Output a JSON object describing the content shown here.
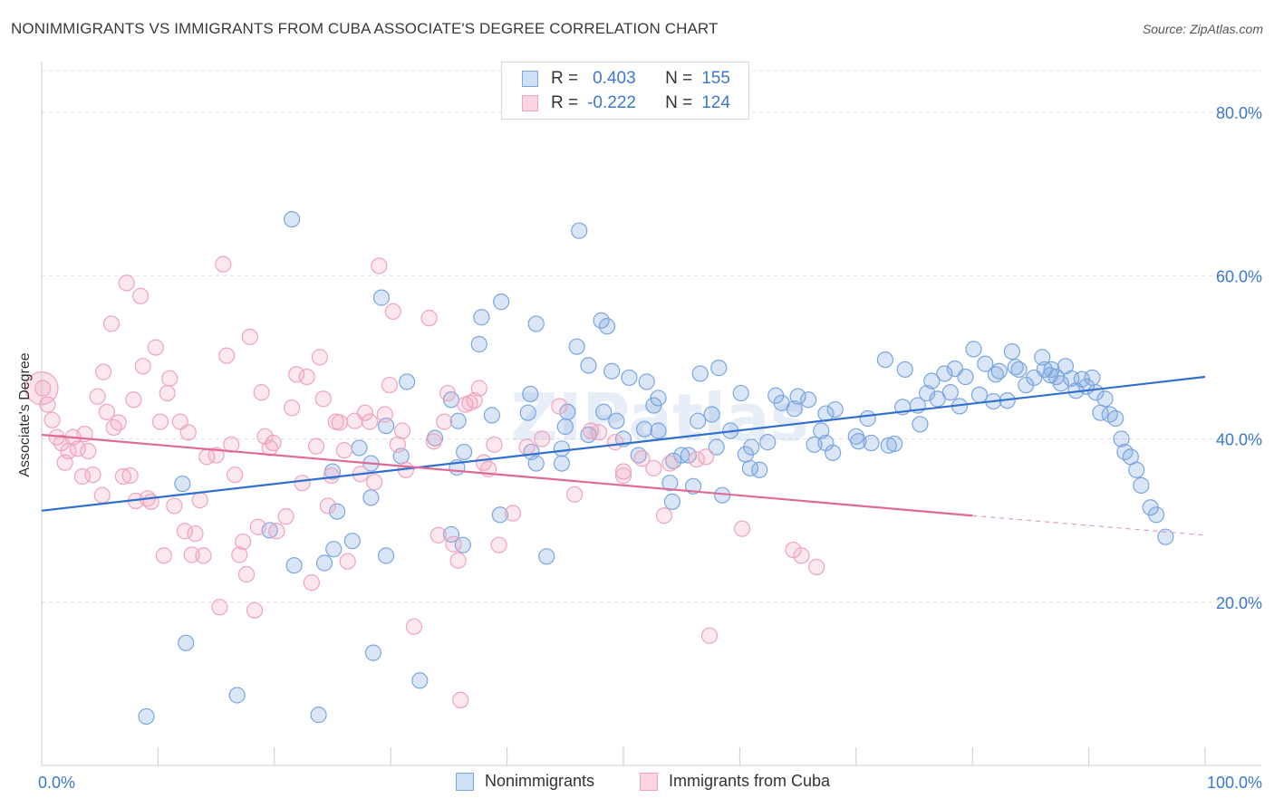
{
  "header": {
    "title": "NONIMMIGRANTS VS IMMIGRANTS FROM CUBA ASSOCIATE'S DEGREE CORRELATION CHART",
    "source": "Source: ZipAtlas.com"
  },
  "watermark": "ZIPatlas",
  "stats_legend": [
    {
      "r_label": "R =",
      "r_value": "0.403",
      "n_label": "N =",
      "n_value": "155"
    },
    {
      "r_label": "R =",
      "r_value": "-0.222",
      "n_label": "N =",
      "n_value": "124"
    }
  ],
  "chart_data": {
    "type": "scatter",
    "title": "NONIMMIGRANTS VS IMMIGRANTS FROM CUBA ASSOCIATE'S DEGREE CORRELATION CHART",
    "xlabel": "",
    "ylabel": "Associate's Degree",
    "xlim": [
      0,
      100
    ],
    "ylim": [
      0,
      83
    ],
    "x_ticks": [
      {
        "value": 0,
        "label": "0.0%"
      },
      {
        "value": 100,
        "label": "100.0%"
      }
    ],
    "y_ticks": [
      {
        "value": 20,
        "label": "20.0%"
      },
      {
        "value": 40,
        "label": "40.0%"
      },
      {
        "value": 60,
        "label": "60.0%"
      },
      {
        "value": 80,
        "label": "80.0%"
      }
    ],
    "grid": true,
    "legend_position": "bottom-center",
    "colors": {
      "nonimmigrants": "#7aa6e0",
      "cuba": "#f0a3bd",
      "blue_line": "#2f6fd0",
      "pink_line": "#e06a96",
      "tick_text": "#3b78d0"
    },
    "series": [
      {
        "name": "Nonimmigrants",
        "color": "#7aa6e0",
        "trend": {
          "x": [
            0,
            100
          ],
          "y": [
            31.2,
            47.6
          ]
        },
        "points": [
          [
            21.5,
            66.9
          ],
          [
            46.2,
            65.5
          ],
          [
            29.2,
            57.3
          ],
          [
            39.5,
            56.8
          ],
          [
            37.8,
            54.9
          ],
          [
            42.5,
            54.1
          ],
          [
            48.1,
            54.5
          ],
          [
            48.6,
            53.8
          ],
          [
            37.6,
            51.6
          ],
          [
            46.0,
            51.3
          ],
          [
            47.0,
            49.0
          ],
          [
            50.5,
            47.5
          ],
          [
            52.0,
            47.0
          ],
          [
            49.0,
            48.3
          ],
          [
            53.0,
            45.0
          ],
          [
            42.0,
            45.5
          ],
          [
            31.4,
            47.0
          ],
          [
            35.2,
            44.8
          ],
          [
            35.8,
            42.2
          ],
          [
            33.8,
            40.1
          ],
          [
            29.6,
            41.6
          ],
          [
            27.3,
            38.9
          ],
          [
            36.3,
            38.4
          ],
          [
            28.3,
            37.0
          ],
          [
            30.9,
            37.9
          ],
          [
            25.0,
            36.0
          ],
          [
            28.3,
            32.8
          ],
          [
            25.4,
            31.1
          ],
          [
            12.1,
            34.5
          ],
          [
            35.7,
            36.5
          ],
          [
            38.7,
            42.9
          ],
          [
            41.8,
            43.2
          ],
          [
            42.1,
            38.4
          ],
          [
            42.5,
            37.0
          ],
          [
            44.7,
            38.8
          ],
          [
            44.7,
            37.0
          ],
          [
            45.2,
            43.3
          ],
          [
            48.3,
            43.3
          ],
          [
            49.4,
            42.2
          ],
          [
            51.8,
            41.2
          ],
          [
            51.3,
            38.0
          ],
          [
            52.6,
            44.1
          ],
          [
            54.3,
            37.3
          ],
          [
            55.6,
            38.0
          ],
          [
            54.0,
            34.6
          ],
          [
            54.2,
            32.3
          ],
          [
            56.0,
            34.2
          ],
          [
            56.4,
            42.2
          ],
          [
            57.6,
            43.0
          ],
          [
            56.6,
            48.0
          ],
          [
            58.5,
            33.1
          ],
          [
            58.2,
            48.7
          ],
          [
            60.1,
            45.6
          ],
          [
            59.2,
            41.0
          ],
          [
            60.5,
            38.1
          ],
          [
            60.9,
            36.4
          ],
          [
            61.7,
            36.2
          ],
          [
            62.4,
            39.6
          ],
          [
            63.1,
            45.3
          ],
          [
            63.6,
            44.4
          ],
          [
            64.7,
            43.7
          ],
          [
            65.0,
            45.2
          ],
          [
            65.9,
            44.8
          ],
          [
            66.4,
            39.3
          ],
          [
            67.4,
            43.1
          ],
          [
            67.0,
            41.0
          ],
          [
            68.2,
            43.6
          ],
          [
            68.0,
            38.3
          ],
          [
            70.0,
            40.3
          ],
          [
            70.2,
            39.7
          ],
          [
            71.3,
            39.5
          ],
          [
            71.0,
            42.5
          ],
          [
            72.5,
            49.7
          ],
          [
            72.8,
            39.2
          ],
          [
            73.3,
            39.4
          ],
          [
            74.0,
            43.9
          ],
          [
            74.2,
            48.5
          ],
          [
            75.3,
            44.1
          ],
          [
            75.5,
            41.8
          ],
          [
            76.1,
            45.6
          ],
          [
            76.5,
            47.1
          ],
          [
            77.0,
            44.9
          ],
          [
            77.6,
            48.0
          ],
          [
            78.5,
            48.6
          ],
          [
            78.1,
            45.7
          ],
          [
            78.9,
            44.0
          ],
          [
            79.4,
            47.6
          ],
          [
            80.1,
            51.0
          ],
          [
            80.6,
            45.4
          ],
          [
            81.8,
            44.6
          ],
          [
            81.1,
            49.2
          ],
          [
            82.0,
            47.9
          ],
          [
            82.3,
            48.3
          ],
          [
            83.4,
            50.7
          ],
          [
            83.0,
            44.7
          ],
          [
            84.0,
            48.5
          ],
          [
            84.6,
            46.6
          ],
          [
            85.3,
            47.5
          ],
          [
            86.0,
            50.0
          ],
          [
            86.2,
            48.5
          ],
          [
            86.7,
            47.8
          ],
          [
            87.2,
            47.6
          ],
          [
            87.6,
            46.8
          ],
          [
            88.0,
            48.9
          ],
          [
            88.5,
            47.4
          ],
          [
            88.9,
            45.9
          ],
          [
            89.4,
            47.3
          ],
          [
            89.8,
            46.4
          ],
          [
            90.3,
            47.5
          ],
          [
            90.6,
            45.7
          ],
          [
            91.0,
            43.2
          ],
          [
            91.4,
            44.9
          ],
          [
            91.8,
            43.0
          ],
          [
            92.3,
            42.5
          ],
          [
            92.8,
            40.0
          ],
          [
            93.1,
            38.4
          ],
          [
            93.6,
            37.8
          ],
          [
            94.1,
            36.2
          ],
          [
            94.5,
            34.3
          ],
          [
            95.3,
            31.6
          ],
          [
            95.8,
            30.7
          ],
          [
            96.6,
            28.0
          ],
          [
            26.7,
            27.5
          ],
          [
            25.1,
            26.5
          ],
          [
            24.3,
            24.8
          ],
          [
            21.7,
            24.5
          ],
          [
            29.6,
            25.7
          ],
          [
            19.6,
            28.8
          ],
          [
            35.2,
            28.3
          ],
          [
            36.2,
            27.0
          ],
          [
            39.4,
            30.7
          ],
          [
            43.4,
            25.6
          ],
          [
            12.4,
            15.0
          ],
          [
            28.5,
            13.8
          ],
          [
            32.5,
            10.4
          ],
          [
            16.8,
            8.6
          ],
          [
            9.0,
            6.0
          ],
          [
            23.8,
            6.2
          ],
          [
            83.7,
            48.8
          ],
          [
            86.8,
            48.5
          ],
          [
            67.4,
            39.5
          ],
          [
            61.0,
            39.0
          ],
          [
            58.0,
            39.0
          ],
          [
            55.0,
            38.0
          ],
          [
            53.0,
            41.0
          ],
          [
            50.0,
            40.0
          ],
          [
            47.0,
            40.5
          ],
          [
            45.0,
            41.5
          ]
        ]
      },
      {
        "name": "Immigrants from Cuba",
        "color": "#f0a3bd",
        "trend": {
          "x": [
            0,
            80
          ],
          "y": [
            40.5,
            30.6
          ]
        },
        "trend_dashed": {
          "x": [
            80,
            100
          ],
          "y": [
            30.6,
            28.2
          ]
        },
        "points": [
          [
            0.1,
            46.2
          ],
          [
            0.5,
            44.2
          ],
          [
            0.9,
            42.3
          ],
          [
            1.3,
            40.2
          ],
          [
            1.7,
            39.5
          ],
          [
            2.0,
            37.1
          ],
          [
            2.3,
            38.5
          ],
          [
            2.7,
            40.2
          ],
          [
            3.1,
            38.8
          ],
          [
            3.5,
            35.4
          ],
          [
            3.7,
            40.6
          ],
          [
            4.0,
            38.5
          ],
          [
            4.4,
            35.6
          ],
          [
            4.8,
            45.2
          ],
          [
            5.2,
            33.1
          ],
          [
            5.3,
            48.2
          ],
          [
            5.6,
            43.3
          ],
          [
            6.0,
            54.1
          ],
          [
            6.2,
            41.4
          ],
          [
            6.6,
            42.0
          ],
          [
            7.0,
            35.4
          ],
          [
            7.3,
            59.1
          ],
          [
            7.6,
            35.5
          ],
          [
            7.9,
            44.8
          ],
          [
            8.1,
            32.4
          ],
          [
            8.5,
            57.5
          ],
          [
            8.7,
            48.9
          ],
          [
            9.1,
            32.7
          ],
          [
            9.4,
            32.3
          ],
          [
            9.8,
            51.2
          ],
          [
            10.2,
            42.1
          ],
          [
            10.5,
            25.7
          ],
          [
            10.8,
            45.6
          ],
          [
            11.0,
            47.4
          ],
          [
            11.4,
            31.8
          ],
          [
            11.9,
            42.1
          ],
          [
            12.3,
            28.7
          ],
          [
            12.6,
            40.8
          ],
          [
            12.9,
            25.8
          ],
          [
            13.2,
            28.4
          ],
          [
            13.6,
            32.5
          ],
          [
            13.9,
            25.7
          ],
          [
            14.2,
            37.8
          ],
          [
            15.0,
            38.0
          ],
          [
            15.3,
            19.4
          ],
          [
            15.6,
            61.4
          ],
          [
            15.9,
            50.2
          ],
          [
            16.3,
            39.3
          ],
          [
            16.6,
            35.6
          ],
          [
            17.0,
            25.8
          ],
          [
            17.3,
            27.4
          ],
          [
            17.6,
            23.4
          ],
          [
            17.9,
            52.5
          ],
          [
            18.3,
            19.0
          ],
          [
            18.6,
            29.2
          ],
          [
            18.9,
            45.7
          ],
          [
            19.2,
            40.3
          ],
          [
            19.6,
            38.9
          ],
          [
            19.9,
            39.5
          ],
          [
            20.2,
            28.7
          ],
          [
            21.0,
            30.5
          ],
          [
            21.5,
            43.8
          ],
          [
            21.9,
            47.9
          ],
          [
            22.4,
            34.6
          ],
          [
            22.8,
            47.6
          ],
          [
            23.2,
            22.4
          ],
          [
            23.6,
            39.1
          ],
          [
            23.9,
            50.0
          ],
          [
            24.2,
            44.9
          ],
          [
            24.6,
            31.8
          ],
          [
            24.9,
            35.5
          ],
          [
            25.3,
            42.1
          ],
          [
            25.6,
            42.0
          ],
          [
            26.0,
            38.6
          ],
          [
            26.3,
            25.0
          ],
          [
            26.9,
            42.2
          ],
          [
            27.4,
            35.7
          ],
          [
            27.8,
            43.2
          ],
          [
            28.2,
            42.1
          ],
          [
            28.6,
            34.7
          ],
          [
            29.0,
            61.2
          ],
          [
            29.5,
            43.0
          ],
          [
            29.9,
            46.6
          ],
          [
            30.2,
            55.6
          ],
          [
            30.6,
            39.3
          ],
          [
            31.0,
            41.0
          ],
          [
            31.3,
            36.2
          ],
          [
            32.0,
            17.0
          ],
          [
            33.3,
            54.8
          ],
          [
            33.7,
            39.7
          ],
          [
            34.1,
            28.2
          ],
          [
            34.6,
            42.1
          ],
          [
            34.9,
            45.6
          ],
          [
            35.4,
            27.1
          ],
          [
            35.8,
            25.1
          ],
          [
            36.0,
            8.0
          ],
          [
            36.4,
            44.2
          ],
          [
            36.8,
            44.4
          ],
          [
            37.2,
            44.7
          ],
          [
            37.6,
            46.2
          ],
          [
            38.0,
            37.1
          ],
          [
            38.4,
            36.3
          ],
          [
            38.9,
            39.3
          ],
          [
            39.3,
            27.0
          ],
          [
            40.5,
            30.9
          ],
          [
            41.7,
            39.0
          ],
          [
            43.0,
            40.0
          ],
          [
            44.5,
            44.0
          ],
          [
            45.8,
            33.2
          ],
          [
            47.2,
            41.0
          ],
          [
            47.9,
            40.8
          ],
          [
            49.3,
            39.6
          ],
          [
            50.0,
            36.0
          ],
          [
            51.6,
            37.6
          ],
          [
            52.6,
            36.4
          ],
          [
            53.5,
            30.6
          ],
          [
            54.0,
            37.0
          ],
          [
            57.1,
            37.8
          ],
          [
            57.4,
            15.9
          ],
          [
            60.2,
            29.0
          ],
          [
            64.6,
            26.4
          ],
          [
            65.3,
            25.7
          ],
          [
            66.6,
            24.3
          ],
          [
            50.0,
            35.5
          ],
          [
            56.3,
            37.5
          ]
        ]
      }
    ]
  },
  "bottom_legend": [
    {
      "label": "Nonimmigrants"
    },
    {
      "label": "Immigrants from Cuba"
    }
  ]
}
